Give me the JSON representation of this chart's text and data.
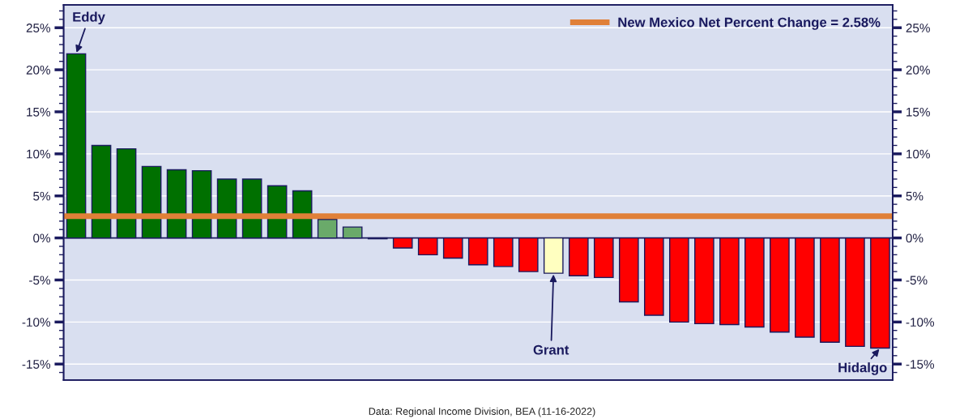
{
  "chart_data": {
    "type": "bar",
    "categories": [
      null,
      null,
      null,
      null,
      null,
      null,
      null,
      null,
      null,
      null,
      null,
      null,
      null,
      null,
      null,
      null,
      null,
      null,
      null,
      null,
      null,
      null,
      null,
      null,
      null,
      null,
      null,
      null,
      null,
      null,
      null,
      null,
      null
    ],
    "values": [
      21.9,
      11.0,
      10.6,
      8.5,
      8.1,
      8.0,
      7.0,
      7.0,
      6.2,
      5.6,
      2.2,
      1.3,
      -0.1,
      -1.2,
      -2.0,
      -2.4,
      -3.2,
      -3.4,
      -4.0,
      -4.2,
      -4.5,
      -4.7,
      -7.6,
      -9.2,
      -10.0,
      -10.2,
      -10.3,
      -10.6,
      -11.2,
      -11.8,
      -12.4,
      -12.9,
      -13.1
    ],
    "colors": [
      "#007000",
      "#007000",
      "#007000",
      "#007000",
      "#007000",
      "#007000",
      "#007000",
      "#007000",
      "#007000",
      "#007000",
      "#6aaa6a",
      "#6aaa6a",
      "#ff0000",
      "#ff0000",
      "#ff0000",
      "#ff0000",
      "#ff0000",
      "#ff0000",
      "#ff0000",
      "#ffffc0",
      "#ff0000",
      "#ff0000",
      "#ff0000",
      "#ff0000",
      "#ff0000",
      "#ff0000",
      "#ff0000",
      "#ff0000",
      "#ff0000",
      "#ff0000",
      "#ff0000",
      "#ff0000",
      "#ff0000"
    ],
    "ylim": [
      -16.9,
      27.7
    ],
    "yticks": [
      {
        "value": -15,
        "label": "-15%"
      },
      {
        "value": -10,
        "label": "-10%"
      },
      {
        "value": -5,
        "label": "-5%"
      },
      {
        "value": 0,
        "label": "0%"
      },
      {
        "value": 5,
        "label": "5%"
      },
      {
        "value": 10,
        "label": "10%"
      },
      {
        "value": 15,
        "label": "15%"
      },
      {
        "value": 20,
        "label": "20%"
      },
      {
        "value": 25,
        "label": "25%"
      }
    ],
    "y2lim": [
      -16.9,
      27.7
    ],
    "y2ticks": [
      {
        "value": -15,
        "label": "-15%"
      },
      {
        "value": -10,
        "label": "-10%"
      },
      {
        "value": -5,
        "label": "-5%"
      },
      {
        "value": 0,
        "label": "0%"
      },
      {
        "value": 5,
        "label": "5%"
      },
      {
        "value": 10,
        "label": "10%"
      },
      {
        "value": 15,
        "label": "15%"
      },
      {
        "value": 20,
        "label": "20%"
      },
      {
        "value": 25,
        "label": "25%"
      }
    ],
    "ref_lines": [
      {
        "axis": "y",
        "value": 2.58,
        "label": "New Mexico Net Percent Change = 2.58%",
        "color": "#e08038"
      }
    ],
    "annotations": [
      {
        "text": "Eddy",
        "y": 21.9
      },
      {
        "text": "Grant",
        "y": -4.2
      },
      {
        "text": "Hidalgo",
        "y": -13.1
      },
      "Data: Regional Income Division, BEA (11-16-2022)"
    ],
    "grid": "y",
    "legend": "top right"
  }
}
